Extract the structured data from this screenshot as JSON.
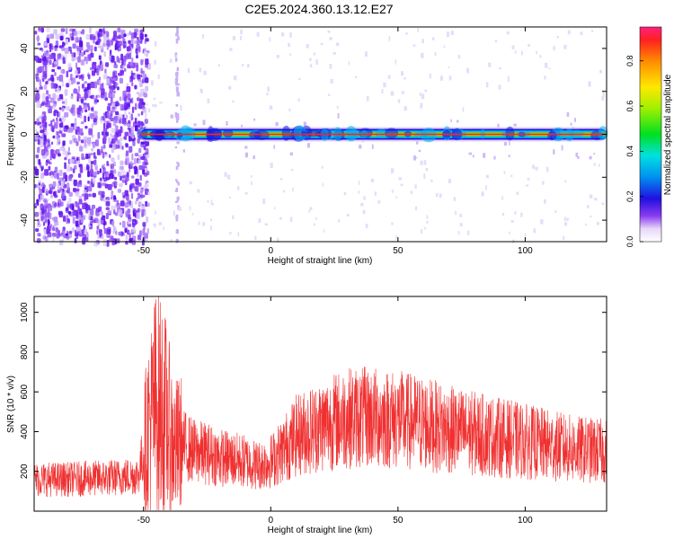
{
  "title": "C2E5.2024.360.13.12.E27",
  "colorbar": {
    "label": "Normalized spectral amplitude",
    "ticks": [
      "0.0",
      "0.2",
      "0.4",
      "0.6",
      "0.8"
    ],
    "range": [
      0,
      0.95
    ]
  },
  "chart_data": [
    {
      "type": "heatmap",
      "xlabel": "Height of straight line (km)",
      "ylabel": "Frequency (Hz)",
      "xlim": [
        -93,
        132
      ],
      "ylim": [
        -50,
        50
      ],
      "xticks": [
        "-50",
        "0",
        "50",
        "100"
      ],
      "yticks": [
        "-40",
        "-20",
        "0",
        "20",
        "40"
      ],
      "noise_region_km": [
        -93,
        -50
      ],
      "signal_band": {
        "frequency_hz": 0,
        "start_km": -51,
        "end_km": 132
      },
      "grid": false
    },
    {
      "type": "line",
      "xlabel": "Height of straight line (km)",
      "ylabel": "SNR (10 * v/v)",
      "xlim": [
        -93,
        132
      ],
      "ylim": [
        0,
        1080
      ],
      "xticks": [
        "-50",
        "0",
        "50",
        "100"
      ],
      "yticks": [
        "200",
        "400",
        "600",
        "800",
        "1000"
      ],
      "color": "#f03030",
      "series": [
        {
          "x": [
            -93,
            -80,
            -70,
            -60,
            -52,
            -48,
            -45,
            -42,
            -38,
            -34,
            -30,
            -25,
            -20,
            -15,
            -10,
            -5,
            0,
            5,
            10,
            20,
            30,
            40,
            50,
            60,
            70,
            80,
            90,
            100,
            110,
            120,
            132
          ],
          "values": [
            160,
            160,
            165,
            170,
            180,
            420,
            550,
            500,
            320,
            330,
            300,
            290,
            270,
            260,
            250,
            230,
            250,
            310,
            380,
            430,
            470,
            470,
            460,
            440,
            410,
            390,
            370,
            350,
            330,
            310,
            300
          ]
        }
      ]
    }
  ]
}
